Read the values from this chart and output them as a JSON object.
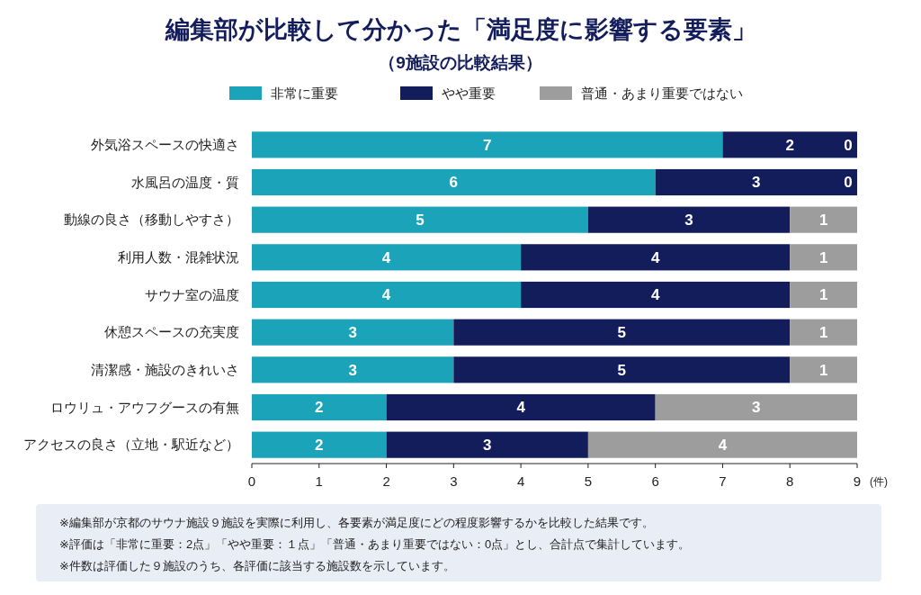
{
  "chart_data": {
    "type": "bar",
    "orientation": "horizontal",
    "stacked": true,
    "title": "編集部が比較して分かった「満足度に影響する要素」",
    "subtitle": "（9施設の比較結果）",
    "xlabel": "(件)",
    "categories": [
      "外気浴スペースの快適さ",
      "水風呂の温度・質",
      "動線の良さ（移動しやすさ）",
      "利用人数・混雑状況",
      "サウナ室の温度",
      "休憩スペースの充実度",
      "清潔感・施設のきれいさ",
      "ロウリュ・アウフグースの有無",
      "アクセスの良さ（立地・駅近など）"
    ],
    "series": [
      {
        "name": "非常に重要",
        "color": "#1ba3b9",
        "values": [
          7,
          6,
          5,
          4,
          4,
          3,
          3,
          2,
          2
        ]
      },
      {
        "name": "やや重要",
        "color": "#141d5b",
        "values": [
          2,
          3,
          3,
          4,
          4,
          5,
          5,
          4,
          3
        ]
      },
      {
        "name": "普通・あまり重要ではない",
        "color": "#9d9d9d",
        "values": [
          0,
          0,
          1,
          1,
          1,
          1,
          1,
          3,
          4
        ]
      }
    ],
    "xlim": [
      0,
      9
    ],
    "xticks": [
      0,
      1,
      2,
      3,
      4,
      5,
      6,
      7,
      8,
      9
    ],
    "data_labels": true,
    "legend": "top",
    "annotations": [
      "※編集部が京都のサウナ施設９施設を実際に利用し、各要素が満足度にどの程度影響するかを比較した結果です。",
      "※評価は「非常に重要：2点」「やや重要：１点」「普通・あまり重要ではない：0点」とし、合計点で集計しています。",
      "※件数は評価した９施設のうち、各評価に該当する施設数を示しています。"
    ]
  }
}
